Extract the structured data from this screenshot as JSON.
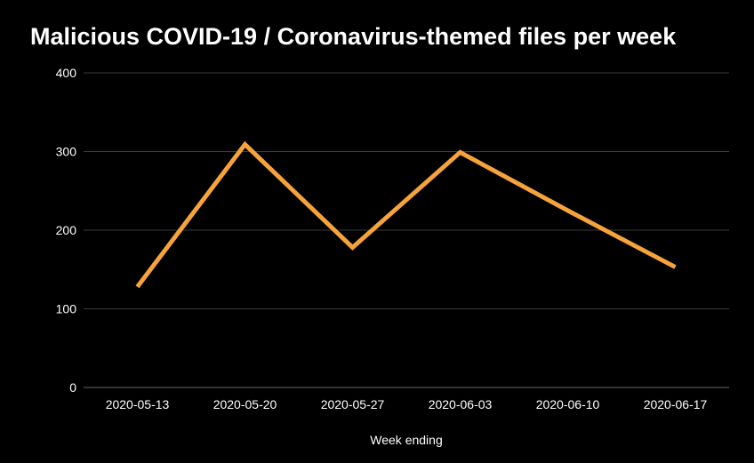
{
  "chart_data": {
    "type": "line",
    "title": "Malicious COVID-19 / Coronavirus-themed files per week",
    "xlabel": "Week ending",
    "ylabel": "",
    "categories": [
      "2020-05-13",
      "2020-05-20",
      "2020-05-27",
      "2020-06-03",
      "2020-06-10",
      "2020-06-17"
    ],
    "y_ticks": [
      "0",
      "100",
      "200",
      "300",
      "400"
    ],
    "ylim": [
      0,
      400
    ],
    "grid": true,
    "legend": "none",
    "series": [
      {
        "values": [
          128,
          309,
          178,
          299,
          225,
          153
        ],
        "color": "#f5a33a"
      }
    ],
    "colors": {
      "background": "#000000",
      "grid": "#3a3a3a",
      "text": "#ffffff"
    }
  }
}
